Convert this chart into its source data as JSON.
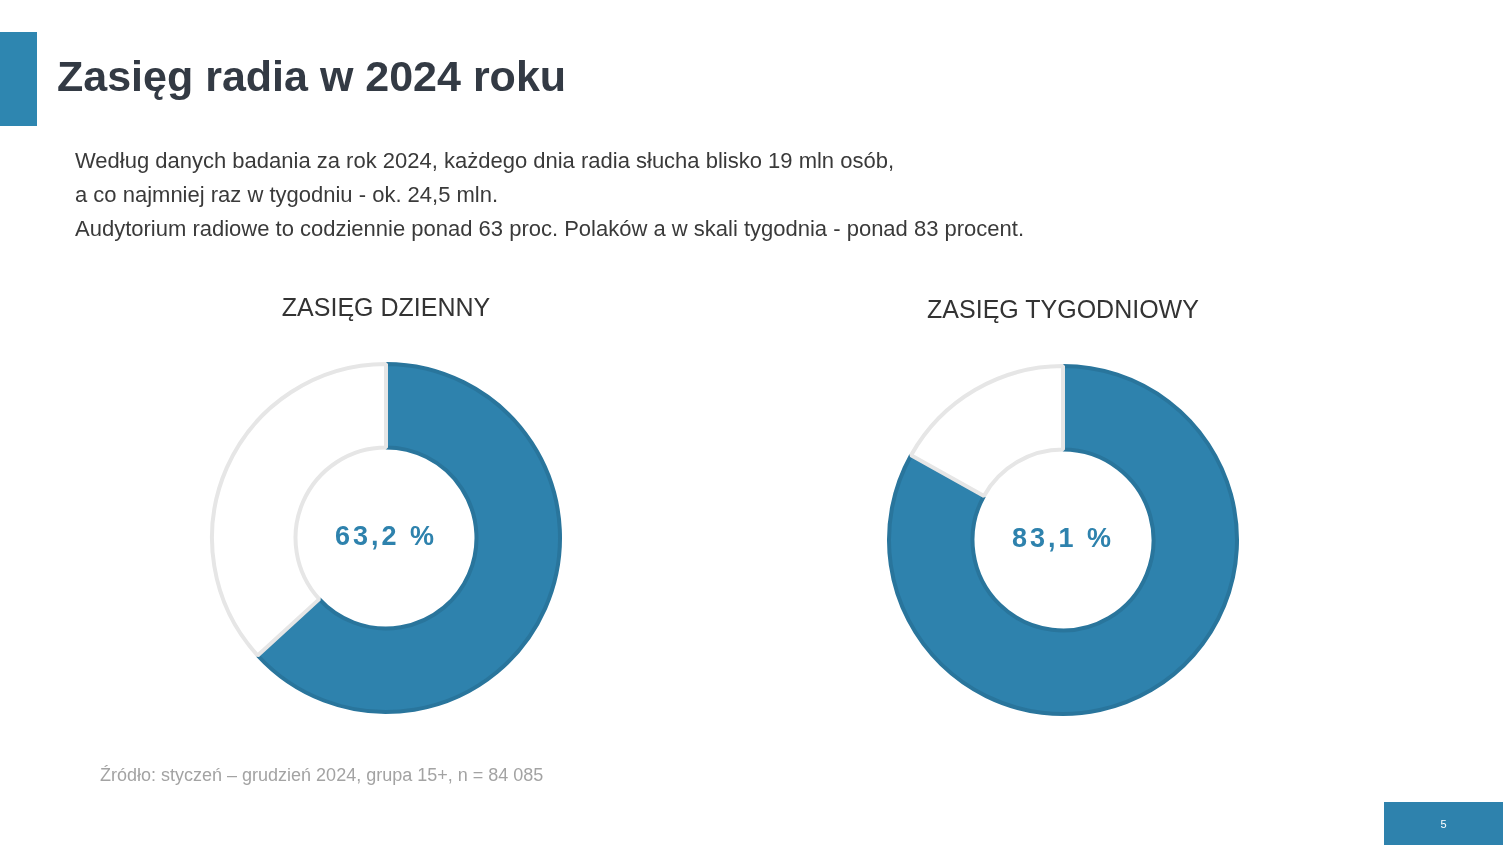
{
  "chart_data": [
    {
      "type": "other",
      "title": "Zasięg radia w 2024 roku",
      "subtitle": "Według danych badania za rok 2024, każdego dnia radia słucha blisko 19 mln osób,\na co najmniej raz w tygodniu - ok. 24,5 mln.\nAudytorium radiowe to codziennie ponad 63 proc. Polaków a w skali tygodnia - ponad 83 procent."
    },
    {
      "type": "donut",
      "title": "ZASIĘG DZIENNY",
      "categories": [
        null,
        null
      ],
      "values": [
        63.2,
        36.8
      ],
      "colors": [
        "#2e82ad",
        "#ffffff"
      ],
      "value_labels": [
        "63,2 %",
        null
      ]
    },
    {
      "type": "donut",
      "title": "ZASIĘG TYGODNIOWY",
      "categories": [
        null,
        null
      ],
      "values": [
        83.1,
        16.9
      ],
      "colors": [
        "#2e82ad",
        "#ffffff"
      ],
      "value_labels": [
        "83,1 %",
        null
      ]
    },
    {
      "type": "other",
      "annotations": [
        "Źródło: styczeń – grudzień 2024, grupa 15+, n = 84 085"
      ]
    },
    {
      "type": "other",
      "annotations": [
        "5"
      ]
    }
  ]
}
